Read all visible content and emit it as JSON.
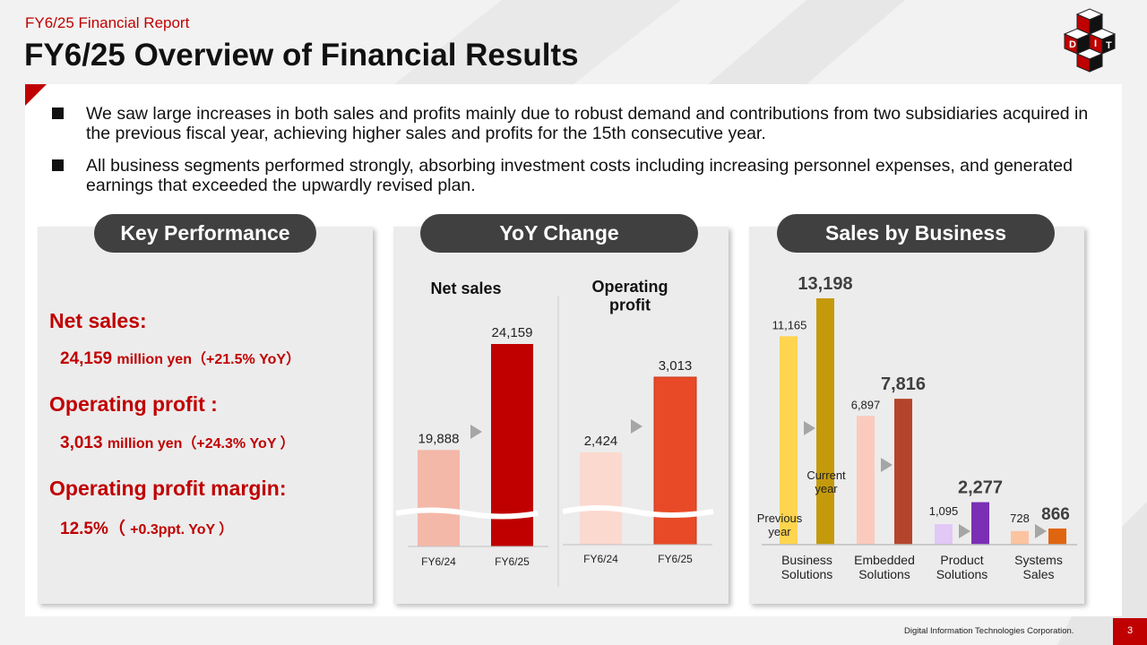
{
  "header": {
    "subtitle": "FY6/25 Financial Report",
    "title": "FY6/25 Overview of Financial Results",
    "logo_letters": [
      "D",
      "I",
      "T"
    ]
  },
  "bullets": [
    "We saw large increases in both sales and profits mainly due to robust demand and contributions from two subsidiaries acquired in the previous fiscal year, achieving higher sales and profits for the 15th consecutive year.",
    "All business segments performed strongly, absorbing investment costs including increasing personnel expenses, and generated earnings that exceeded the upwardly revised plan."
  ],
  "key_performance": {
    "heading": "Key Performance",
    "net_sales_label": "Net sales:",
    "net_sales_value": "24,159",
    "net_sales_detail": "million yen（+21.5% YoY）",
    "op_profit_label": "Operating profit :",
    "op_profit_value": "3,013",
    "op_profit_detail": "million yen（+24.3% YoY ）",
    "op_margin_label": "Operating profit margin:",
    "op_margin_value": "12.5%（",
    "op_margin_detail": "+0.3ppt. YoY ）"
  },
  "yoy_heading": "YoY Change",
  "sales_heading": "Sales by Business",
  "chart_data": [
    {
      "type": "bar",
      "title": "Net sales",
      "categories": [
        "FY6/24",
        "FY6/25"
      ],
      "values": [
        19888,
        24159
      ],
      "value_labels": [
        "19,888",
        "24,159"
      ],
      "colors": [
        "#f4b8a8",
        "#c00000"
      ],
      "axis_break": true
    },
    {
      "type": "bar",
      "title": "Operating\nprofit",
      "categories": [
        "FY6/24",
        "FY6/25"
      ],
      "values": [
        2424,
        3013
      ],
      "value_labels": [
        "2,424",
        "3,013"
      ],
      "colors": [
        "#fbd9cf",
        "#e84a27"
      ],
      "axis_break": true
    },
    {
      "type": "bar",
      "categories": [
        "Business\nSolutions",
        "Embedded\nSolutions",
        "Product\nSolutions",
        "Systems\nSales"
      ],
      "series": [
        {
          "values": [
            11165,
            6897,
            1095,
            728
          ],
          "value_labels": [
            "11,165",
            "6,897",
            "1,095",
            "728"
          ]
        },
        {
          "values": [
            13198,
            7816,
            2277,
            866
          ],
          "value_labels": [
            "13,198",
            "7,816",
            "2,277",
            "866"
          ]
        }
      ],
      "colors_previous": [
        "#ffd54f",
        "#fbcabc",
        "#e1c8f6",
        "#fbc3a0"
      ],
      "colors_current": [
        "#c49a0b",
        "#b5442c",
        "#7a2fb5",
        "#e0650f"
      ],
      "annotations": {
        "previous": "Previous\nyear",
        "current": "Current\nyear"
      }
    }
  ],
  "footer": {
    "company": "Digital Information Technologies Corporation.",
    "page": "3"
  }
}
